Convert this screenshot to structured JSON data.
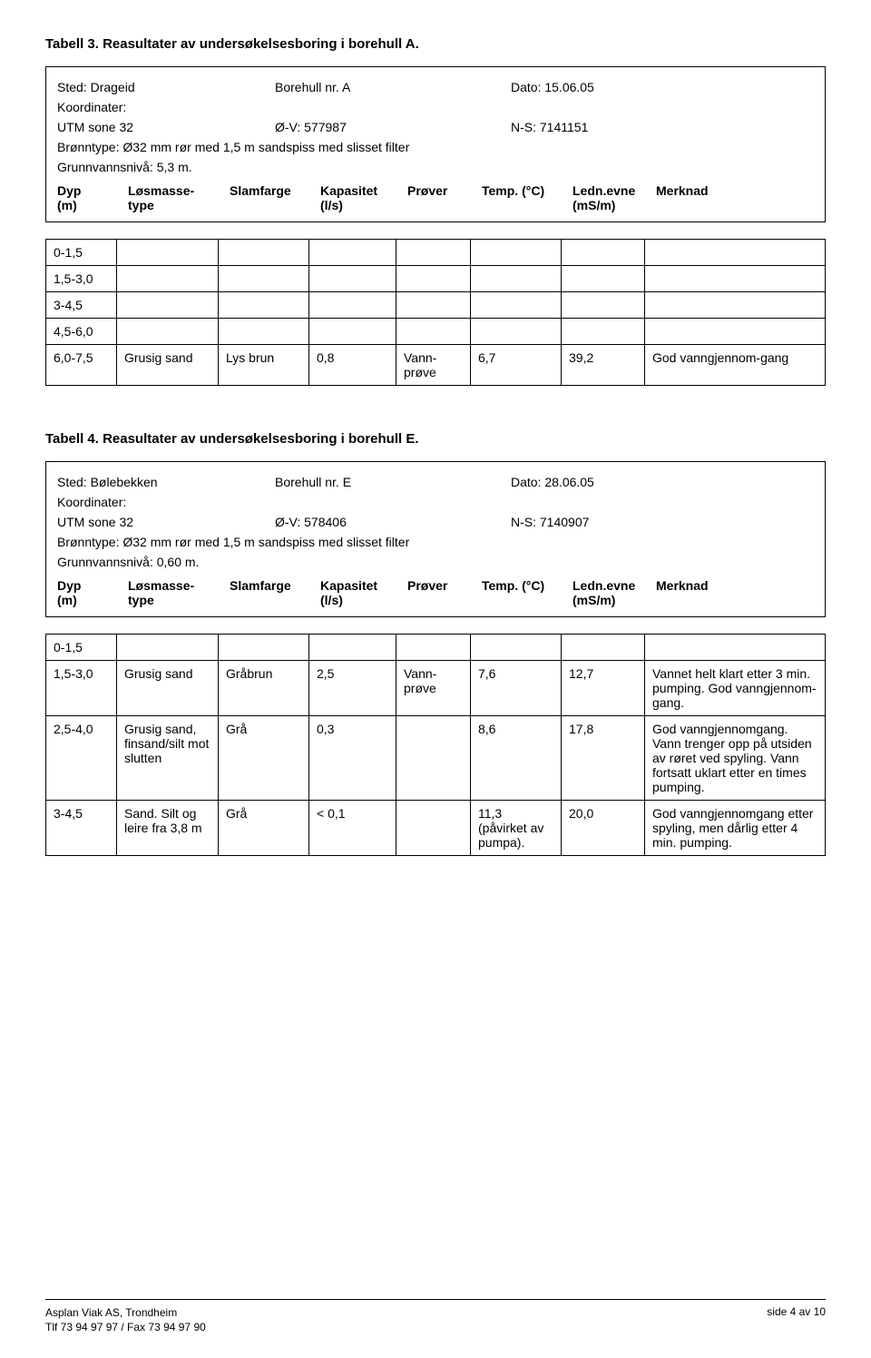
{
  "tab3": {
    "title": "Tabell 3. Reasultater av undersøkelsesboring i borehull A.",
    "sted_lbl": "Sted: Drageid",
    "borehull_lbl": "Borehull nr. A",
    "dato_lbl": "Dato: 15.06.05",
    "koord_lbl": "Koordinater:",
    "utm_lbl": "UTM sone 32",
    "ov_lbl": "Ø-V: 577987",
    "ns_lbl": "N-S: 7141151",
    "bronntype": "Brønntype: Ø32 mm rør med 1,5 m sandspiss med slisset filter",
    "grunnvann": "Grunnvannsnivå: 5,3 m.",
    "headers": {
      "dyp1": "Dyp",
      "dyp2": "(m)",
      "type1": "Løsmasse-",
      "type2": "type",
      "slam": "Slamfarge",
      "kap1": "Kapasitet",
      "kap2": "(l/s)",
      "prov": "Prøver",
      "temp": "Temp. (°C)",
      "ledn1": "Ledn.evne",
      "ledn2": "(mS/m)",
      "merk": "Merknad"
    },
    "rows": [
      {
        "dyp": "0-1,5",
        "type": "",
        "slam": "",
        "kap": "",
        "prov": "",
        "temp": "",
        "ledn": "",
        "merk": ""
      },
      {
        "dyp": "1,5-3,0",
        "type": "",
        "slam": "",
        "kap": "",
        "prov": "",
        "temp": "",
        "ledn": "",
        "merk": ""
      },
      {
        "dyp": "3-4,5",
        "type": "",
        "slam": "",
        "kap": "",
        "prov": "",
        "temp": "",
        "ledn": "",
        "merk": ""
      },
      {
        "dyp": "4,5-6,0",
        "type": "",
        "slam": "",
        "kap": "",
        "prov": "",
        "temp": "",
        "ledn": "",
        "merk": ""
      },
      {
        "dyp": "6,0-7,5",
        "type": "Grusig sand",
        "slam": "Lys brun",
        "kap": "0,8",
        "prov": "Vann-prøve",
        "temp": "6,7",
        "ledn": "39,2",
        "merk": "God vanngjennom-gang"
      }
    ]
  },
  "tab4": {
    "title": "Tabell 4. Reasultater av undersøkelsesboring i borehull E.",
    "sted_lbl": "Sted: Bølebekken",
    "borehull_lbl": "Borehull nr. E",
    "dato_lbl": "Dato: 28.06.05",
    "koord_lbl": "Koordinater:",
    "utm_lbl": "UTM sone 32",
    "ov_lbl": "Ø-V: 578406",
    "ns_lbl": "N-S: 7140907",
    "bronntype": "Brønntype: Ø32 mm rør med 1,5 m sandspiss med slisset filter",
    "grunnvann": "Grunnvannsnivå: 0,60 m.",
    "headers": {
      "dyp1": "Dyp",
      "dyp2": "(m)",
      "type1": "Løsmasse-",
      "type2": "type",
      "slam": "Slamfarge",
      "kap1": "Kapasitet",
      "kap2": "(l/s)",
      "prov": "Prøver",
      "temp": "Temp. (°C)",
      "ledn1": "Ledn.evne",
      "ledn2": "(mS/m)",
      "merk": "Merknad"
    },
    "rows": [
      {
        "dyp": "0-1,5",
        "type": "",
        "slam": "",
        "kap": "",
        "prov": "",
        "temp": "",
        "ledn": "",
        "merk": ""
      },
      {
        "dyp": "1,5-3,0",
        "type": "Grusig sand",
        "slam": "Gråbrun",
        "kap": "2,5",
        "prov": "Vann-prøve",
        "temp": "7,6",
        "ledn": "12,7",
        "merk": "Vannet helt klart etter 3 min. pumping. God vanngjennom-gang."
      },
      {
        "dyp": "2,5-4,0",
        "type": "Grusig sand, finsand/silt mot slutten",
        "slam": "Grå",
        "kap": "0,3",
        "prov": "",
        "temp": "8,6",
        "ledn": "17,8",
        "merk": "God vanngjennomgang. Vann trenger opp på utsiden av røret ved spyling. Vann fortsatt uklart etter en times pumping."
      },
      {
        "dyp": "3-4,5",
        "type": "Sand. Silt og leire fra 3,8 m",
        "slam": "Grå",
        "kap": "< 0,1",
        "prov": "",
        "temp": "11,3 (påvirket av pumpa).",
        "ledn": "20,0",
        "merk": "God vanngjennomgang etter spyling, men dårlig etter 4 min. pumping."
      }
    ]
  },
  "footer": {
    "line1": "Asplan Viak AS, Trondheim",
    "line2": "Tlf 73 94 97 97 / Fax 73 94 97 90",
    "page": "side 4 av 10"
  }
}
